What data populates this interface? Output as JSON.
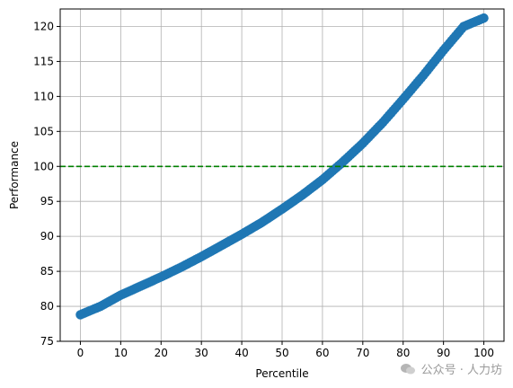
{
  "chart_data": {
    "type": "scatter",
    "xlabel": "Percentile",
    "ylabel": "Performance",
    "xlim": [
      -5,
      105
    ],
    "ylim": [
      75,
      122.5
    ],
    "xticks": [
      0,
      10,
      20,
      30,
      40,
      50,
      60,
      70,
      80,
      90,
      100
    ],
    "yticks": [
      75,
      80,
      85,
      90,
      95,
      100,
      105,
      110,
      115,
      120
    ],
    "grid": true,
    "series": [
      {
        "marker_color": "#1f77b4",
        "x": [
          0,
          5,
          10,
          15,
          20,
          25,
          30,
          35,
          40,
          45,
          50,
          55,
          60,
          65,
          70,
          75,
          80,
          85,
          90,
          95,
          100
        ],
        "y": [
          78.8,
          80.0,
          81.6,
          82.9,
          84.2,
          85.6,
          87.1,
          88.7,
          90.3,
          92.0,
          93.9,
          95.9,
          98.1,
          100.6,
          103.3,
          106.3,
          109.6,
          113.0,
          116.6,
          120.0,
          121.2
        ]
      }
    ],
    "reference_line": {
      "y": 100,
      "color": "#008000",
      "style": "dashed"
    }
  },
  "watermark": {
    "text": "公众号 · 人力坊"
  }
}
